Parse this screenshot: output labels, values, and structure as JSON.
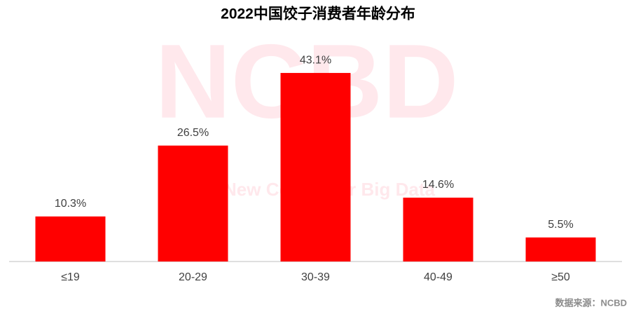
{
  "chart_data": {
    "type": "bar",
    "title": "2022中国饺子消费者年龄分布",
    "categories": [
      "≤19",
      "20-29",
      "30-39",
      "40-49",
      "≥50"
    ],
    "values": [
      10.3,
      26.5,
      43.1,
      14.6,
      5.5
    ],
    "value_labels": [
      "10.3%",
      "26.5%",
      "43.1%",
      "14.6%",
      "5.5%"
    ],
    "color": "#ff0000",
    "watermark": "NCBD",
    "watermark_subtitle": "New Consumer Big Data",
    "source": "数据来源：NCBD"
  }
}
